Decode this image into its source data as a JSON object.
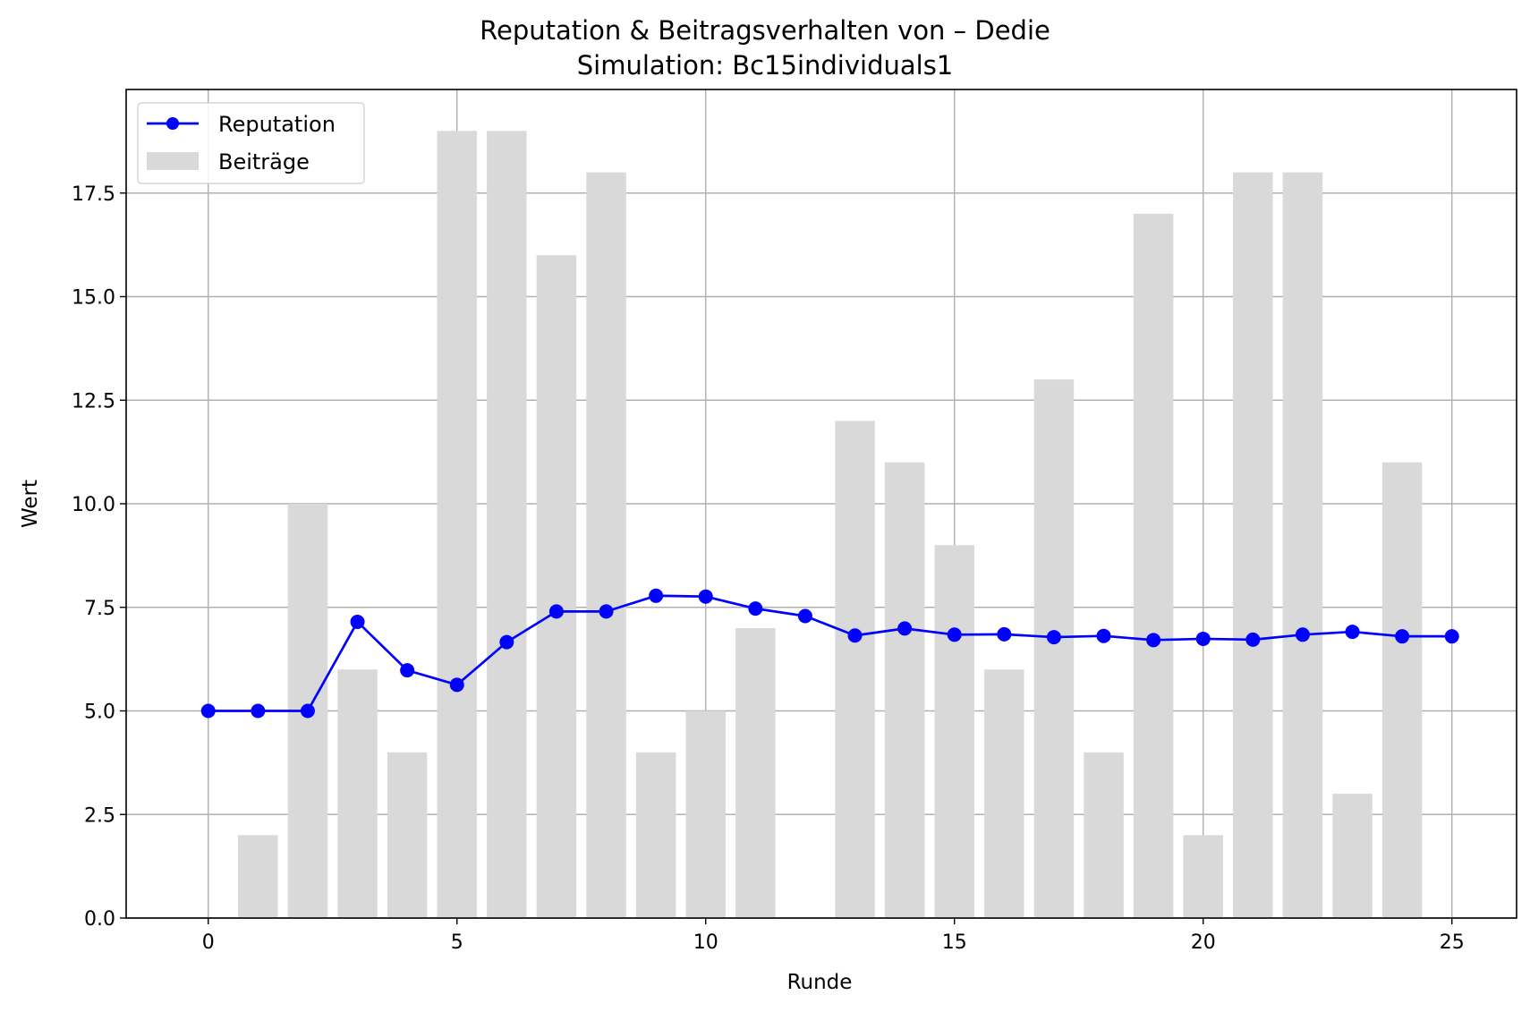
{
  "chart_data": {
    "type": "bar+line",
    "title": "Reputation & Beitragsverhalten von – Dedie",
    "subtitle": "Simulation: Bc15individuals1",
    "xlabel": "Runde",
    "ylabel": "Wert",
    "xlim": [
      -1.65,
      26.3
    ],
    "ylim": [
      0,
      20
    ],
    "xticks": [
      0,
      5,
      10,
      15,
      20,
      25
    ],
    "yticks": [
      0.0,
      2.5,
      5.0,
      7.5,
      10.0,
      12.5,
      15.0,
      17.5
    ],
    "ytick_labels": [
      "0.0",
      "2.5",
      "5.0",
      "7.5",
      "10.0",
      "12.5",
      "15.0",
      "17.5"
    ],
    "grid": true,
    "legend_position": "top-left",
    "bars": {
      "name": "Beiträge",
      "color": "#d9d9d9",
      "x": [
        1,
        2,
        3,
        4,
        5,
        6,
        7,
        8,
        9,
        10,
        11,
        12,
        13,
        14,
        15,
        16,
        17,
        18,
        19,
        20,
        21,
        22,
        23,
        24
      ],
      "values": [
        2,
        10,
        6,
        4,
        19,
        19,
        16,
        18,
        4,
        5,
        7,
        0,
        12,
        11,
        9,
        6,
        13,
        4,
        17,
        2,
        18,
        18,
        3,
        11
      ]
    },
    "line": {
      "name": "Reputation",
      "color": "#0000ff",
      "x": [
        0,
        1,
        2,
        3,
        4,
        5,
        6,
        7,
        8,
        9,
        10,
        11,
        12,
        13,
        14,
        15,
        16,
        17,
        18,
        19,
        20,
        21,
        22,
        23,
        24,
        25
      ],
      "values": [
        5.0,
        5.0,
        5.0,
        7.15,
        5.98,
        5.63,
        6.66,
        7.4,
        7.4,
        7.78,
        7.76,
        7.47,
        7.29,
        6.82,
        6.99,
        6.84,
        6.85,
        6.78,
        6.81,
        6.71,
        6.74,
        6.72,
        6.84,
        6.91,
        6.8,
        6.8
      ]
    }
  }
}
